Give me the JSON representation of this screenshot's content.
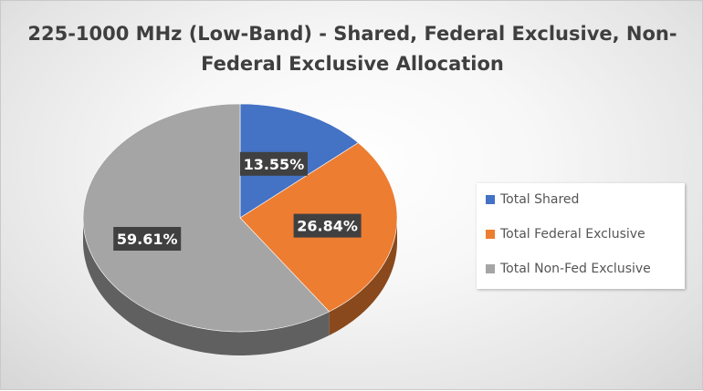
{
  "chart_data": {
    "type": "pie",
    "title": "225-1000 MHz (Low-Band) - Shared, Federal Exclusive, Non-Federal Exclusive Allocation",
    "series": [
      {
        "name": "Total Shared",
        "value": 13.55,
        "label": "13.55%",
        "color": "#4472c4"
      },
      {
        "name": "Total Federal Exclusive",
        "value": 26.84,
        "label": "26.84%",
        "color": "#ed7d31"
      },
      {
        "name": "Total Non-Fed Exclusive",
        "value": 59.61,
        "label": "59.61%",
        "color": "#a5a5a5"
      }
    ],
    "legend_position": "right",
    "style": "3d"
  }
}
